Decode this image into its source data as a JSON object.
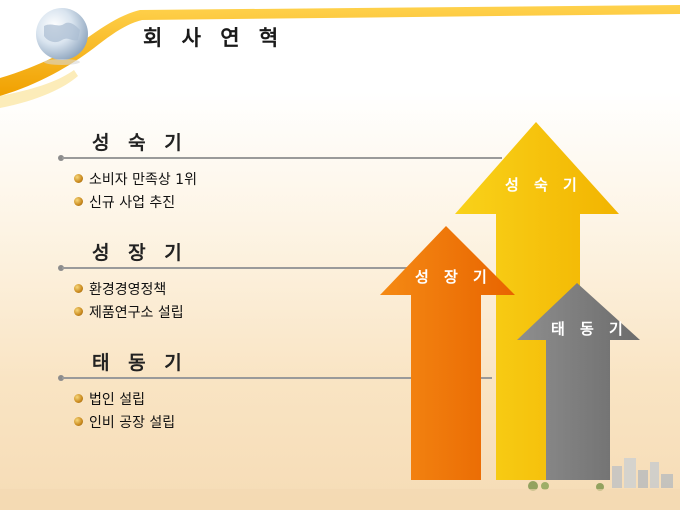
{
  "slide": {
    "title": "회 사 연 혁",
    "sections": [
      {
        "heading": "성 숙 기",
        "items": [
          "소비자 만족상 1위",
          "신규 사업 추진"
        ]
      },
      {
        "heading": "성 장 기",
        "items": [
          "환경경영정책",
          "제품연구소 설립"
        ]
      },
      {
        "heading": "태 동 기",
        "items": [
          "법인 설립",
          "인비 공장 설립"
        ]
      }
    ],
    "arrows": [
      {
        "label": "성 숙 기",
        "color": "#f7c500"
      },
      {
        "label": "성 장 기",
        "color": "#f27a0a"
      },
      {
        "label": "태 동 기",
        "color": "#7c7c7c"
      }
    ]
  },
  "colors": {
    "ribbon": "#f6b400",
    "globe": "#bcd0e6",
    "rule": "#9a9a9a"
  }
}
